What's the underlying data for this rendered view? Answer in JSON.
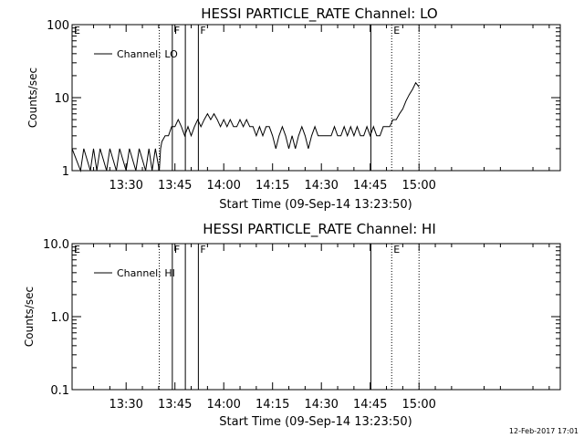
{
  "footer_timestamp": "12-Feb-2017 17:01",
  "chart_data": [
    {
      "type": "line",
      "title": "HESSI PARTICLE_RATE Channel: LO",
      "xlabel": "Start Time (09-Sep-14 13:23:50)",
      "ylabel": "Counts/sec",
      "yscale": "log",
      "ylim": [
        1,
        100
      ],
      "y_ticks": [
        "1",
        "10",
        "100"
      ],
      "x_range_minutes": [
        13.4,
        163.4
      ],
      "x_ticks": [
        {
          "value": 30,
          "label": "13:30"
        },
        {
          "value": 45,
          "label": "13:45"
        },
        {
          "value": 60,
          "label": "14:00"
        },
        {
          "value": 75,
          "label": "14:15"
        },
        {
          "value": 90,
          "label": "14:30"
        },
        {
          "value": 105,
          "label": "14:45"
        },
        {
          "value": 120,
          "label": "15:00"
        }
      ],
      "legend": "Channel: LO",
      "legend_placement": "top-left",
      "markers": [
        {
          "time": 13.4,
          "label": "E",
          "style": "none"
        },
        {
          "time": 40.2,
          "label": "",
          "style": "dotted"
        },
        {
          "time": 44.2,
          "label": "F",
          "style": "solid"
        },
        {
          "time": 48.2,
          "label": "",
          "style": "solid"
        },
        {
          "time": 52.2,
          "label": "F",
          "style": "solid"
        },
        {
          "time": 105.2,
          "label": "",
          "style": "solid"
        },
        {
          "time": 111.6,
          "label": "E",
          "style": "dotted"
        },
        {
          "time": 120.0,
          "label": "",
          "style": "dotted"
        }
      ],
      "series": [
        {
          "name": "Channel: LO",
          "x": [
            13.4,
            16,
            17,
            19,
            20,
            21,
            22,
            24,
            25,
            27,
            28,
            30,
            31,
            33,
            34,
            36,
            37,
            38,
            39,
            40.2,
            40.6,
            41,
            42,
            43,
            44,
            45,
            46,
            47,
            48,
            49,
            50,
            51,
            52,
            53,
            54,
            55,
            56,
            57,
            58,
            59,
            60,
            61,
            62,
            63,
            64,
            65,
            66,
            67,
            68,
            69,
            70,
            71,
            72,
            73,
            74,
            75,
            76,
            77,
            78,
            79,
            80,
            81,
            82,
            83,
            84,
            85,
            86,
            87,
            88,
            89,
            90,
            91,
            92,
            93,
            94,
            95,
            96,
            97,
            98,
            99,
            100,
            101,
            102,
            103,
            104,
            105,
            106,
            107,
            108,
            109,
            110,
            111,
            112,
            113,
            114,
            115,
            116,
            117,
            118,
            119,
            120
          ],
          "values": [
            2,
            1,
            2,
            1,
            2,
            1,
            2,
            1,
            2,
            1,
            2,
            1,
            2,
            1,
            2,
            1,
            2,
            1,
            2,
            1,
            2,
            2.5,
            3,
            3,
            4,
            4,
            5,
            4,
            3,
            4,
            3,
            4,
            5,
            4,
            5,
            6,
            5,
            6,
            5,
            4,
            5,
            4,
            5,
            4,
            4,
            5,
            4,
            5,
            4,
            4,
            3,
            4,
            3,
            4,
            4,
            3,
            2,
            3,
            4,
            3,
            2,
            3,
            2,
            3,
            4,
            3,
            2,
            3,
            4,
            3,
            3,
            3,
            3,
            3,
            4,
            3,
            3,
            4,
            3,
            4,
            3,
            4,
            3,
            3,
            4,
            3,
            4,
            3,
            3,
            4,
            4,
            4,
            5,
            5,
            6,
            7,
            9,
            11,
            13,
            16,
            14
          ]
        }
      ]
    },
    {
      "type": "line",
      "title": "HESSI PARTICLE_RATE Channel: HI",
      "xlabel": "Start Time (09-Sep-14 13:23:50)",
      "ylabel": "Counts/sec",
      "yscale": "log",
      "ylim": [
        0.1,
        10
      ],
      "y_ticks": [
        "0.1",
        "1.0",
        "10.0"
      ],
      "x_range_minutes": [
        13.4,
        163.4
      ],
      "x_ticks": [
        {
          "value": 30,
          "label": "13:30"
        },
        {
          "value": 45,
          "label": "13:45"
        },
        {
          "value": 60,
          "label": "14:00"
        },
        {
          "value": 75,
          "label": "14:15"
        },
        {
          "value": 90,
          "label": "14:30"
        },
        {
          "value": 105,
          "label": "14:45"
        },
        {
          "value": 120,
          "label": "15:00"
        }
      ],
      "legend": "Channel: HI",
      "legend_placement": "top-left",
      "markers": [
        {
          "time": 13.4,
          "label": "E",
          "style": "none"
        },
        {
          "time": 40.2,
          "label": "",
          "style": "dotted"
        },
        {
          "time": 44.2,
          "label": "F",
          "style": "solid"
        },
        {
          "time": 48.2,
          "label": "",
          "style": "solid"
        },
        {
          "time": 52.2,
          "label": "F",
          "style": "solid"
        },
        {
          "time": 105.2,
          "label": "",
          "style": "solid"
        },
        {
          "time": 111.6,
          "label": "E",
          "style": "dotted"
        },
        {
          "time": 120.0,
          "label": "",
          "style": "dotted"
        }
      ],
      "series": [
        {
          "name": "Channel: HI",
          "x": [],
          "values": []
        }
      ]
    }
  ]
}
